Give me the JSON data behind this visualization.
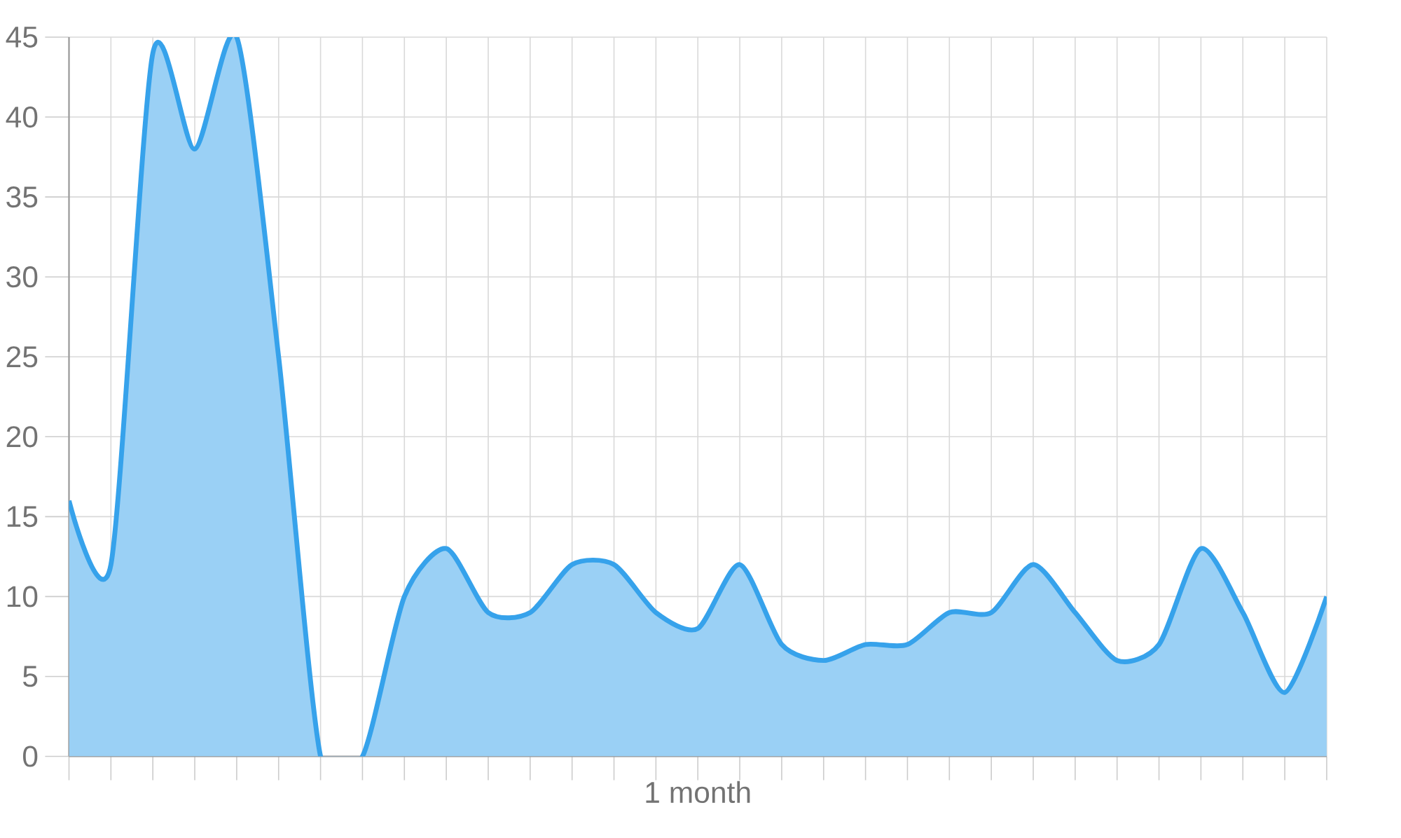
{
  "chart_data": {
    "type": "area",
    "xlabel": "1 month",
    "categories": [
      null,
      null,
      null,
      null,
      null,
      null,
      null,
      null,
      null,
      null,
      null,
      null,
      null,
      null,
      null,
      null,
      null,
      null,
      null,
      null,
      null,
      null,
      null,
      null,
      null,
      null,
      null,
      null,
      null,
      null,
      null
    ],
    "values": [
      16,
      12,
      44,
      38,
      45,
      25,
      0,
      0,
      10,
      13,
      9,
      9,
      12,
      12,
      9,
      8,
      12,
      7,
      6,
      7,
      7,
      9,
      9,
      12,
      9,
      6,
      7,
      13,
      9,
      4,
      10
    ],
    "color": "#36a2eb",
    "ylim": [
      0,
      45
    ],
    "yticks": [
      0,
      5,
      10,
      15,
      20,
      25,
      30,
      35,
      40,
      45
    ],
    "grid": true,
    "tick_labels": "y"
  }
}
